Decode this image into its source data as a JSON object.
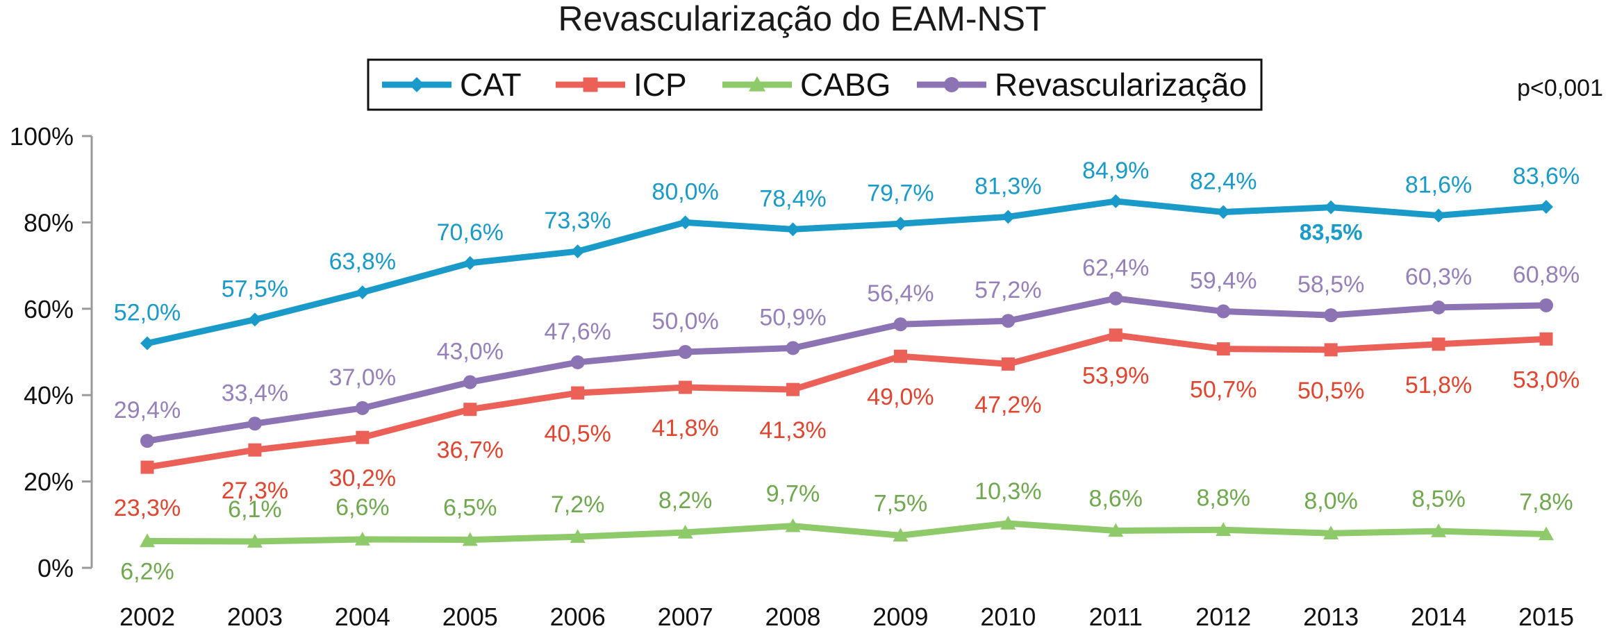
{
  "chart_data": {
    "type": "line",
    "title": "Revascularização do EAM-NST",
    "annotation": "p<0,001",
    "legend_position": "top-center",
    "grid": false,
    "x": [
      "2002",
      "2003",
      "2004",
      "2005",
      "2006",
      "2007",
      "2008",
      "2009",
      "2010",
      "2011",
      "2012",
      "2013",
      "2014",
      "2015"
    ],
    "y_ticks": [
      "0%",
      "20%",
      "40%",
      "60%",
      "80%",
      "100%"
    ],
    "ylim": [
      0,
      100
    ],
    "series": [
      {
        "name": "CAT",
        "color": "#1a9ac9",
        "marker": "diamond",
        "values": [
          52.0,
          57.5,
          63.8,
          70.6,
          73.3,
          80.0,
          78.4,
          79.7,
          81.3,
          84.9,
          82.4,
          83.5,
          81.6,
          83.6
        ],
        "labels": [
          "52,0%",
          "57,5%",
          "63,8%",
          "70,6%",
          "73,3%",
          "80,0%",
          "78,4%",
          "79,7%",
          "81,3%",
          "84,9%",
          "82,4%",
          "83,5%",
          "81,6%",
          "83,6%"
        ]
      },
      {
        "name": "ICP",
        "color": "#eb6157",
        "marker": "square",
        "values": [
          23.3,
          27.3,
          30.2,
          36.7,
          40.5,
          41.8,
          41.3,
          49.0,
          47.2,
          53.9,
          50.7,
          50.5,
          51.8,
          53.0
        ],
        "labels": [
          "23,3%",
          "27,3%",
          "30,2%",
          "36,7%",
          "40,5%",
          "41,8%",
          "41,3%",
          "49,0%",
          "47,2%",
          "53,9%",
          "50,7%",
          "50,5%",
          "51,8%",
          "53,0%"
        ]
      },
      {
        "name": "CABG",
        "color": "#8ec96a",
        "marker": "triangle",
        "values": [
          6.2,
          6.1,
          6.6,
          6.5,
          7.2,
          8.2,
          9.7,
          7.5,
          10.3,
          8.6,
          8.8,
          8.0,
          8.5,
          7.8
        ],
        "labels": [
          "6,2%",
          "6,1%",
          "6,6%",
          "6,5%",
          "7,2%",
          "8,2%",
          "9,7%",
          "7,5%",
          "10,3%",
          "8,6%",
          "8,8%",
          "8,0%",
          "8,5%",
          "7,8%"
        ]
      },
      {
        "name": "Revascularização",
        "color": "#8c73b4",
        "marker": "circle",
        "values": [
          29.4,
          33.4,
          37.0,
          43.0,
          47.6,
          50.0,
          50.9,
          56.4,
          57.2,
          62.4,
          59.4,
          58.5,
          60.3,
          60.8
        ],
        "labels": [
          "29,4%",
          "33,4%",
          "37,0%",
          "43,0%",
          "47,6%",
          "50,0%",
          "50,9%",
          "56,4%",
          "57,2%",
          "62,4%",
          "59,4%",
          "58,5%",
          "60,3%",
          "60,8%"
        ]
      }
    ]
  }
}
